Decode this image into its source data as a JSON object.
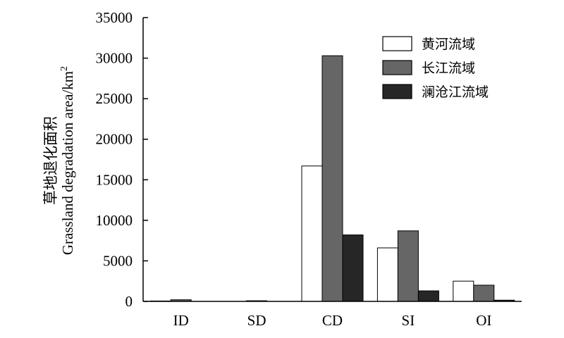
{
  "chart_data": {
    "type": "bar",
    "categories": [
      "ID",
      "SD",
      "CD",
      "SI",
      "OI"
    ],
    "series": [
      {
        "name": "黄河流域",
        "values": [
          50,
          0,
          16700,
          6600,
          2500
        ]
      },
      {
        "name": "长江流域",
        "values": [
          200,
          80,
          30300,
          8700,
          2000
        ]
      },
      {
        "name": "澜沧江流域",
        "values": [
          0,
          0,
          8200,
          1300,
          150
        ]
      }
    ],
    "ylabel_cn": "草地退化面积",
    "ylabel_en": "Grassland degradation area/km",
    "ylabel_sup": "2",
    "ylim": [
      0,
      35000
    ],
    "yticks": [
      0,
      5000,
      10000,
      15000,
      20000,
      25000,
      30000,
      35000
    ],
    "grid": false,
    "legend_position": "top-right",
    "colors": [
      "#ffffff",
      "#666666",
      "#262626"
    ]
  }
}
